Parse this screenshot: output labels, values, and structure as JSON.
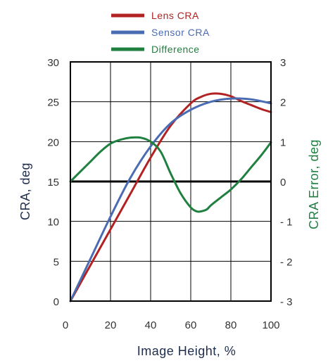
{
  "chart_data": {
    "type": "line",
    "xlabel": "Image Height, %",
    "ylabel": "CRA, deg",
    "y2label": "CRA Error, deg",
    "xlim": [
      0,
      100
    ],
    "ylim": [
      0,
      30
    ],
    "y2lim": [
      -3,
      3
    ],
    "xticks": [
      "0",
      "20",
      "40",
      "60",
      "80",
      "100"
    ],
    "yticks": [
      "0",
      "5",
      "10",
      "15",
      "20",
      "25",
      "30"
    ],
    "y2ticks": [
      "- 3",
      "- 2",
      "- 1",
      "0",
      "1",
      "2",
      "3"
    ],
    "grid": true,
    "legend_position": "top",
    "series": [
      {
        "name": "Lens CRA",
        "axis": "left",
        "color": "#b22222",
        "x": [
          0,
          10,
          20,
          30,
          40,
          50,
          60,
          65,
          70,
          75,
          80,
          85,
          90,
          95,
          100
        ],
        "y": [
          0,
          4.5,
          9.0,
          13.5,
          18.0,
          22.0,
          24.8,
          25.6,
          26.0,
          26.0,
          25.7,
          25.1,
          24.6,
          24.1,
          23.7
        ]
      },
      {
        "name": "Sensor CRA",
        "axis": "left",
        "color": "#4a6cb3",
        "x": [
          0,
          10,
          20,
          30,
          40,
          50,
          60,
          70,
          80,
          90,
          100
        ],
        "y": [
          0,
          5.3,
          10.6,
          15.5,
          19.4,
          22.3,
          24.0,
          25.0,
          25.4,
          25.3,
          24.8
        ]
      },
      {
        "name": "Difference",
        "axis": "right",
        "color": "#1f8040",
        "x": [
          0,
          5,
          10,
          15,
          20,
          25,
          30,
          35,
          40,
          45,
          50,
          55,
          60,
          63,
          65,
          68,
          70,
          75,
          80,
          85,
          90,
          95,
          100
        ],
        "y": [
          0,
          0.25,
          0.5,
          0.75,
          0.95,
          1.05,
          1.1,
          1.1,
          1.0,
          0.75,
          0.2,
          -0.3,
          -0.65,
          -0.75,
          -0.75,
          -0.7,
          -0.6,
          -0.4,
          -0.2,
          0.05,
          0.35,
          0.65,
          0.98
        ]
      }
    ]
  }
}
